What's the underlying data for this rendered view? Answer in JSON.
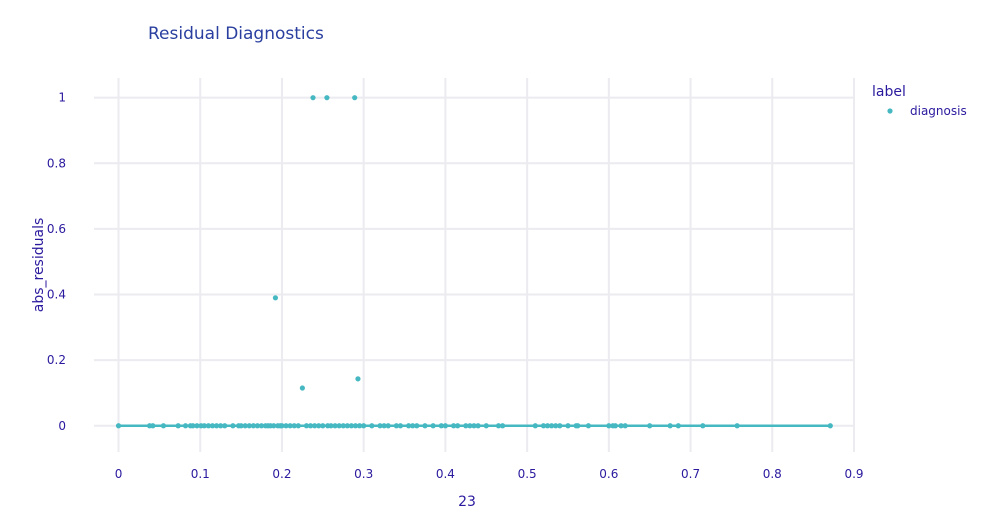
{
  "chart_data": {
    "type": "scatter",
    "title": "Residual Diagnostics",
    "xlabel": "23",
    "ylabel": "abs_residuals",
    "xlim": [
      -0.03,
      0.9
    ],
    "ylim": [
      -0.08,
      1.06
    ],
    "x_ticks": [
      0,
      0.1,
      0.2,
      0.3,
      0.4,
      0.5,
      0.6,
      0.7,
      0.8,
      0.9
    ],
    "x_tick_labels": [
      "0",
      "0.1",
      "0.2",
      "0.3",
      "0.4",
      "0.5",
      "0.6",
      "0.7",
      "0.8",
      "0.9"
    ],
    "y_ticks": [
      0,
      0.2,
      0.4,
      0.6,
      0.8,
      1
    ],
    "y_tick_labels": [
      "0",
      "0.2",
      "0.4",
      "0.6",
      "0.8",
      "1"
    ],
    "grid": true,
    "legend": {
      "title": "label",
      "placement": "top-right"
    },
    "colors": {
      "series": "#46b8c2",
      "text": "#2a1a9e",
      "grid": "#ebebf0"
    },
    "series": [
      {
        "name": "diagnosis",
        "line": {
          "x": [
            0,
            0.871
          ],
          "y": [
            0,
            0
          ]
        },
        "x": [
          0.0,
          0.038,
          0.042,
          0.055,
          0.073,
          0.082,
          0.088,
          0.091,
          0.096,
          0.101,
          0.105,
          0.11,
          0.115,
          0.12,
          0.125,
          0.13,
          0.14,
          0.147,
          0.15,
          0.155,
          0.16,
          0.165,
          0.17,
          0.175,
          0.18,
          0.183,
          0.186,
          0.19,
          0.192,
          0.195,
          0.198,
          0.2,
          0.205,
          0.21,
          0.215,
          0.22,
          0.225,
          0.23,
          0.235,
          0.238,
          0.24,
          0.245,
          0.25,
          0.255,
          0.256,
          0.26,
          0.265,
          0.27,
          0.275,
          0.28,
          0.285,
          0.289,
          0.29,
          0.293,
          0.295,
          0.3,
          0.31,
          0.32,
          0.325,
          0.33,
          0.34,
          0.345,
          0.355,
          0.36,
          0.365,
          0.375,
          0.385,
          0.395,
          0.4,
          0.41,
          0.415,
          0.425,
          0.43,
          0.435,
          0.44,
          0.45,
          0.465,
          0.47,
          0.51,
          0.52,
          0.525,
          0.53,
          0.535,
          0.54,
          0.55,
          0.56,
          0.562,
          0.575,
          0.6,
          0.605,
          0.608,
          0.615,
          0.62,
          0.65,
          0.675,
          0.685,
          0.715,
          0.757,
          0.871
        ],
        "y": [
          0,
          0,
          0,
          0,
          0,
          0,
          0,
          0,
          0,
          0,
          0,
          0,
          0,
          0,
          0,
          0,
          0,
          0,
          0,
          0,
          0,
          0,
          0,
          0,
          0,
          0,
          0,
          0,
          0.39,
          0,
          0,
          0,
          0,
          0,
          0,
          0,
          0.115,
          0,
          0,
          1.0,
          0,
          0,
          0,
          1.0,
          0,
          0,
          0,
          0,
          0,
          0,
          0,
          1.0,
          0,
          0.143,
          0,
          0,
          0,
          0,
          0,
          0,
          0,
          0,
          0,
          0,
          0,
          0,
          0,
          0,
          0,
          0,
          0,
          0,
          0,
          0,
          0,
          0,
          0,
          0,
          0,
          0,
          0,
          0,
          0,
          0,
          0,
          0,
          0,
          0,
          0,
          0,
          0,
          0,
          0,
          0,
          0,
          0,
          0,
          0,
          0
        ]
      }
    ]
  }
}
